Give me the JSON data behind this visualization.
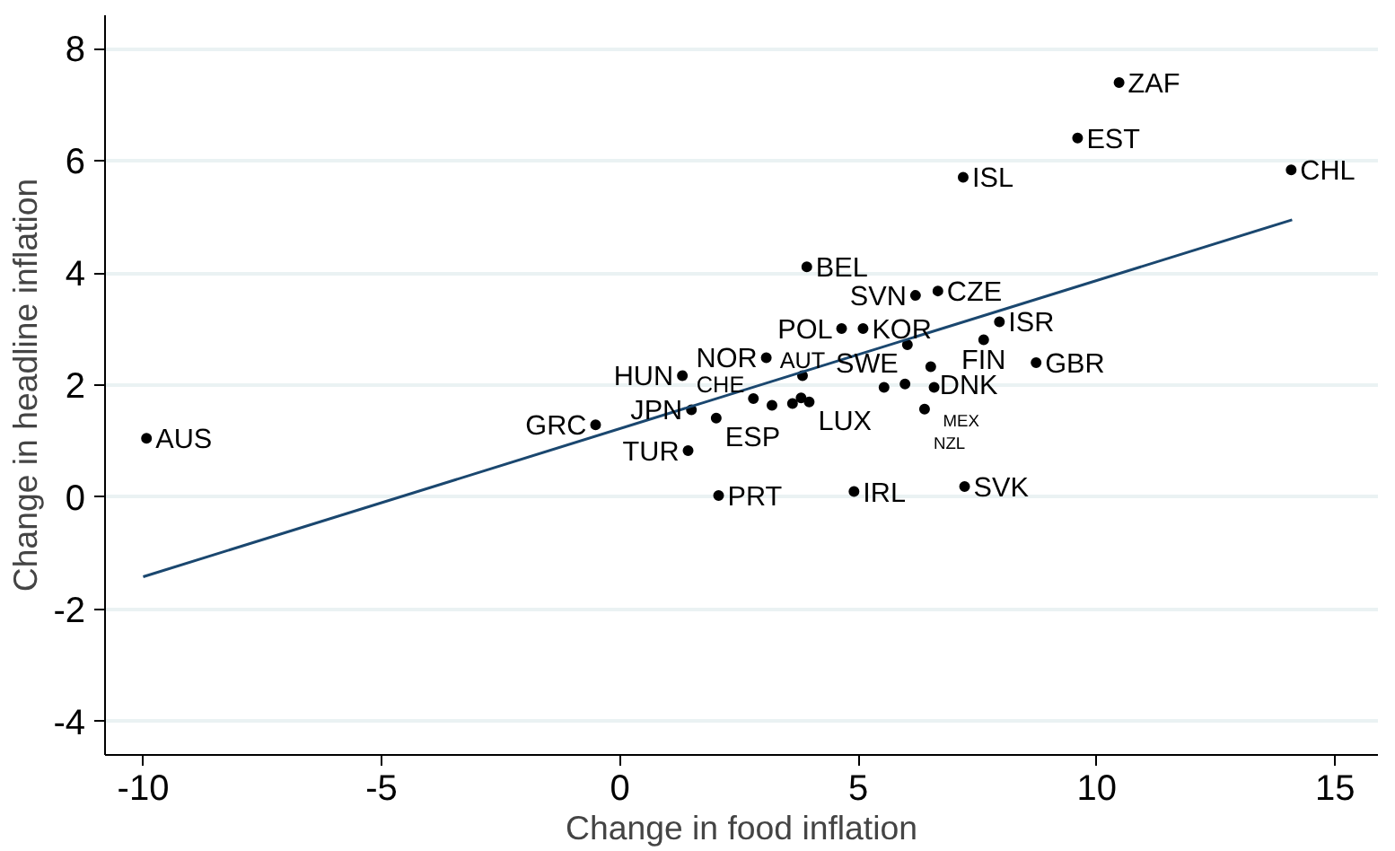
{
  "chart_data": {
    "type": "scatter",
    "xlabel": "Change in food inflation",
    "ylabel": "Change in headline inflation",
    "xlim": [
      -10.8,
      15.9
    ],
    "ylim": [
      -4.6,
      8.6
    ],
    "xticks": [
      -10,
      -5,
      0,
      5,
      10,
      15
    ],
    "yticks": [
      -4,
      -2,
      0,
      2,
      4,
      6,
      8
    ],
    "grid": "y",
    "marker": "circle",
    "series": [
      {
        "color": "#000000",
        "x": [
          10.47,
          9.6,
          7.2,
          14.08,
          3.92,
          6.2,
          6.67,
          4.65,
          5.1,
          6.03,
          7.96,
          7.63,
          6.52,
          8.73,
          3.07,
          1.31,
          3.83,
          2.8,
          3.19,
          3.62,
          3.8,
          3.97,
          5.54,
          5.98,
          6.59,
          1.5,
          2.02,
          -0.51,
          1.43,
          2.07,
          4.91,
          7.23,
          6.39,
          -9.93
        ],
        "values": [
          7.4,
          6.41,
          5.71,
          5.84,
          4.11,
          3.6,
          3.68,
          3.01,
          3.01,
          2.72,
          3.13,
          2.81,
          2.33,
          2.4,
          2.49,
          2.17,
          2.17,
          1.76,
          1.64,
          1.67,
          1.77,
          1.7,
          1.96,
          2.02,
          1.96,
          1.56,
          1.41,
          1.29,
          0.83,
          0.03,
          0.1,
          0.19,
          1.57,
          1.05
        ]
      },
      {
        "type": "line",
        "color": "#1a476f",
        "line_style": "solid",
        "marker": "none",
        "x": [
          -10,
          14.1
        ],
        "values": [
          -1.42,
          4.95
        ]
      }
    ],
    "annotations": [
      {
        "text": "ZAF",
        "x": 10.47,
        "y": 7.4
      },
      {
        "text": "EST",
        "x": 9.6,
        "y": 6.41
      },
      {
        "text": "ISL",
        "x": 7.2,
        "y": 5.71
      },
      {
        "text": "CHL",
        "x": 14.08,
        "y": 5.84
      },
      {
        "text": "BEL",
        "x": 3.92,
        "y": 4.11
      },
      {
        "text": "SVN",
        "x": 6.2,
        "y": 3.6
      },
      {
        "text": "CZE",
        "x": 6.67,
        "y": 3.68
      },
      {
        "text": "POL",
        "x": 4.65,
        "y": 3.01
      },
      {
        "text": "KOR",
        "x": 5.1,
        "y": 3.01
      },
      {
        "text": "SWE",
        "x": 6.03,
        "y": 2.72
      },
      {
        "text": "ISR",
        "x": 7.96,
        "y": 3.13
      },
      {
        "text": "FIN",
        "x": 7.63,
        "y": 2.81
      },
      {
        "text": "DNK",
        "x": 6.52,
        "y": 2.33
      },
      {
        "text": "GBR",
        "x": 8.73,
        "y": 2.4
      },
      {
        "text": "NOR",
        "x": 3.07,
        "y": 2.49
      },
      {
        "text": "HUN",
        "x": 1.31,
        "y": 2.17
      },
      {
        "text": "AUT",
        "x": 3.83,
        "y": 2.17
      },
      {
        "text": "CHE",
        "x": 2.8,
        "y": 1.76
      },
      {
        "text": "LUX",
        "x": 3.97,
        "y": 1.7
      },
      {
        "text": "MEX",
        "x": 6.59,
        "y": 1.96
      },
      {
        "text": "JPN",
        "x": 1.5,
        "y": 1.56
      },
      {
        "text": "ESP",
        "x": 2.02,
        "y": 1.41
      },
      {
        "text": "GRC",
        "x": -0.51,
        "y": 1.29
      },
      {
        "text": "TUR",
        "x": 1.43,
        "y": 0.83
      },
      {
        "text": "PRT",
        "x": 2.07,
        "y": 0.03
      },
      {
        "text": "IRL",
        "x": 4.91,
        "y": 0.1
      },
      {
        "text": "SVK",
        "x": 7.23,
        "y": 0.19
      },
      {
        "text": "NZL",
        "x": 6.39,
        "y": 1.57
      },
      {
        "text": "AUS",
        "x": -9.93,
        "y": 1.05
      }
    ]
  }
}
